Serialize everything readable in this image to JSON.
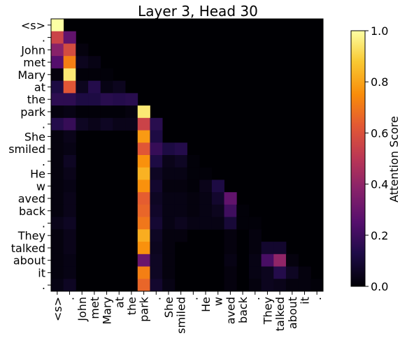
{
  "chart_data": {
    "type": "heatmap",
    "title": "Layer 3, Head 30",
    "tokens": [
      "<s>",
      ".",
      "John",
      "met",
      "Mary",
      "at",
      "the",
      "park",
      ".",
      "She",
      "smiled",
      ".",
      "He",
      "w",
      "aved",
      "back",
      ".",
      "They",
      "talked",
      "about",
      "it",
      "."
    ],
    "colorbar": {
      "label": "Attention Score",
      "range": [
        0,
        1
      ],
      "ticks": [
        "0.0",
        "0.2",
        "0.4",
        "0.6",
        "0.8",
        "1.0"
      ],
      "colormap": "inferno"
    },
    "grid": false,
    "cells": [
      [
        0,
        0,
        1.0
      ],
      [
        1,
        0,
        0.55
      ],
      [
        1,
        1,
        0.28
      ],
      [
        2,
        0,
        0.38
      ],
      [
        2,
        1,
        0.58
      ],
      [
        2,
        2,
        0.02
      ],
      [
        3,
        0,
        0.25
      ],
      [
        3,
        1,
        0.72
      ],
      [
        3,
        2,
        0.05
      ],
      [
        3,
        3,
        0.03
      ],
      [
        4,
        0,
        0.02
      ],
      [
        4,
        1,
        0.95
      ],
      [
        4,
        2,
        0.01
      ],
      [
        4,
        3,
        0.01
      ],
      [
        4,
        4,
        0.01
      ],
      [
        5,
        0,
        0.12
      ],
      [
        5,
        1,
        0.62
      ],
      [
        5,
        2,
        0.05
      ],
      [
        5,
        3,
        0.14
      ],
      [
        5,
        4,
        0.03
      ],
      [
        5,
        5,
        0.05
      ],
      [
        6,
        0,
        0.16
      ],
      [
        6,
        1,
        0.16
      ],
      [
        6,
        2,
        0.12
      ],
      [
        6,
        3,
        0.12
      ],
      [
        6,
        4,
        0.15
      ],
      [
        6,
        5,
        0.14
      ],
      [
        6,
        6,
        0.15
      ],
      [
        7,
        0,
        0.02
      ],
      [
        7,
        1,
        0.03
      ],
      [
        7,
        2,
        0.01
      ],
      [
        7,
        3,
        0.01
      ],
      [
        7,
        4,
        0.01
      ],
      [
        7,
        5,
        0.01
      ],
      [
        7,
        6,
        0.02
      ],
      [
        7,
        7,
        0.95
      ],
      [
        8,
        0,
        0.14
      ],
      [
        8,
        1,
        0.18
      ],
      [
        8,
        2,
        0.06
      ],
      [
        8,
        3,
        0.04
      ],
      [
        8,
        4,
        0.06
      ],
      [
        8,
        5,
        0.04
      ],
      [
        8,
        6,
        0.04
      ],
      [
        8,
        7,
        0.55
      ],
      [
        8,
        8,
        0.15
      ],
      [
        9,
        0,
        0.02
      ],
      [
        9,
        1,
        0.04
      ],
      [
        9,
        7,
        0.78
      ],
      [
        9,
        8,
        0.12
      ],
      [
        10,
        0,
        0.02
      ],
      [
        10,
        1,
        0.03
      ],
      [
        10,
        7,
        0.62
      ],
      [
        10,
        8,
        0.18
      ],
      [
        10,
        9,
        0.12
      ],
      [
        10,
        10,
        0.14
      ],
      [
        11,
        0,
        0.02
      ],
      [
        11,
        1,
        0.06
      ],
      [
        11,
        7,
        0.76
      ],
      [
        11,
        8,
        0.12
      ],
      [
        11,
        9,
        0.04
      ],
      [
        11,
        10,
        0.06
      ],
      [
        11,
        11,
        0.01
      ],
      [
        12,
        0,
        0.02
      ],
      [
        12,
        1,
        0.04
      ],
      [
        12,
        7,
        0.83
      ],
      [
        12,
        8,
        0.06
      ],
      [
        12,
        9,
        0.03
      ],
      [
        12,
        10,
        0.03
      ],
      [
        12,
        11,
        0.01
      ],
      [
        12,
        12,
        0.01
      ],
      [
        13,
        0,
        0.02
      ],
      [
        13,
        1,
        0.03
      ],
      [
        13,
        7,
        0.76
      ],
      [
        13,
        8,
        0.08
      ],
      [
        13,
        9,
        0.02
      ],
      [
        13,
        10,
        0.02
      ],
      [
        13,
        11,
        0.01
      ],
      [
        13,
        12,
        0.04
      ],
      [
        13,
        13,
        0.12
      ],
      [
        14,
        0,
        0.02
      ],
      [
        14,
        1,
        0.04
      ],
      [
        14,
        7,
        0.64
      ],
      [
        14,
        8,
        0.06
      ],
      [
        14,
        9,
        0.03
      ],
      [
        14,
        10,
        0.03
      ],
      [
        14,
        11,
        0.02
      ],
      [
        14,
        12,
        0.03
      ],
      [
        14,
        13,
        0.08
      ],
      [
        14,
        14,
        0.28
      ],
      [
        15,
        0,
        0.02
      ],
      [
        15,
        1,
        0.04
      ],
      [
        15,
        7,
        0.66
      ],
      [
        15,
        8,
        0.07
      ],
      [
        15,
        9,
        0.03
      ],
      [
        15,
        10,
        0.03
      ],
      [
        15,
        11,
        0.02
      ],
      [
        15,
        12,
        0.03
      ],
      [
        15,
        13,
        0.05
      ],
      [
        15,
        14,
        0.2
      ],
      [
        15,
        15,
        0.01
      ],
      [
        16,
        0,
        0.04
      ],
      [
        16,
        1,
        0.06
      ],
      [
        16,
        7,
        0.7
      ],
      [
        16,
        8,
        0.09
      ],
      [
        16,
        9,
        0.03
      ],
      [
        16,
        10,
        0.05
      ],
      [
        16,
        11,
        0.03
      ],
      [
        16,
        12,
        0.03
      ],
      [
        16,
        13,
        0.03
      ],
      [
        16,
        14,
        0.1
      ],
      [
        16,
        15,
        0.01
      ],
      [
        16,
        16,
        0.01
      ],
      [
        17,
        0,
        0.02
      ],
      [
        17,
        1,
        0.04
      ],
      [
        17,
        7,
        0.82
      ],
      [
        17,
        8,
        0.06
      ],
      [
        17,
        9,
        0.02
      ],
      [
        17,
        10,
        0.02
      ],
      [
        17,
        14,
        0.02
      ],
      [
        17,
        16,
        0.02
      ],
      [
        18,
        0,
        0.02
      ],
      [
        18,
        1,
        0.04
      ],
      [
        18,
        7,
        0.76
      ],
      [
        18,
        8,
        0.05
      ],
      [
        18,
        9,
        0.02
      ],
      [
        18,
        14,
        0.02
      ],
      [
        18,
        16,
        0.02
      ],
      [
        18,
        17,
        0.08
      ],
      [
        18,
        18,
        0.08
      ],
      [
        19,
        0,
        0.02
      ],
      [
        19,
        1,
        0.03
      ],
      [
        19,
        7,
        0.3
      ],
      [
        19,
        8,
        0.06
      ],
      [
        19,
        9,
        0.02
      ],
      [
        19,
        14,
        0.03
      ],
      [
        19,
        16,
        0.03
      ],
      [
        19,
        17,
        0.22
      ],
      [
        19,
        18,
        0.4
      ],
      [
        19,
        19,
        0.02
      ],
      [
        20,
        0,
        0.02
      ],
      [
        20,
        1,
        0.03
      ],
      [
        20,
        7,
        0.72
      ],
      [
        20,
        8,
        0.06
      ],
      [
        20,
        9,
        0.02
      ],
      [
        20,
        14,
        0.02
      ],
      [
        20,
        16,
        0.03
      ],
      [
        20,
        17,
        0.05
      ],
      [
        20,
        18,
        0.14
      ],
      [
        20,
        19,
        0.06
      ],
      [
        20,
        20,
        0.02
      ],
      [
        21,
        0,
        0.03
      ],
      [
        21,
        1,
        0.06
      ],
      [
        21,
        7,
        0.66
      ],
      [
        21,
        8,
        0.08
      ],
      [
        21,
        9,
        0.03
      ],
      [
        21,
        14,
        0.02
      ],
      [
        21,
        16,
        0.02
      ],
      [
        21,
        17,
        0.05
      ],
      [
        21,
        18,
        0.04
      ],
      [
        21,
        19,
        0.02
      ],
      [
        21,
        20,
        0.02
      ],
      [
        21,
        21,
        0.01
      ]
    ]
  }
}
